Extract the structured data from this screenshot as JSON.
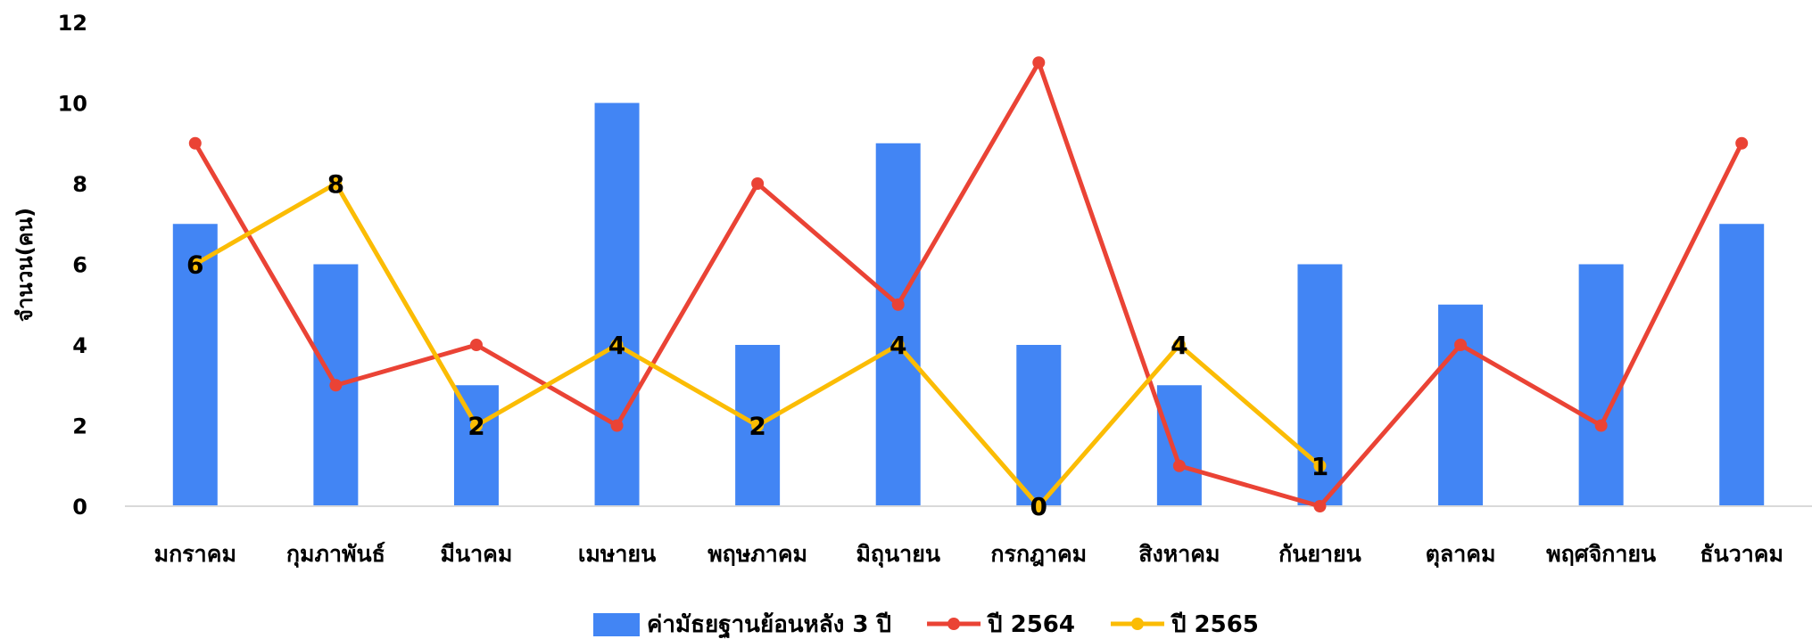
{
  "chart_data": {
    "type": "bar",
    "ylabel": "จำนวน(คน)",
    "ylim": [
      0,
      12
    ],
    "yticks": [
      "0",
      "2",
      "4",
      "6",
      "8",
      "10",
      "12"
    ],
    "grid": false,
    "legend_position": "bottom",
    "categories": [
      "มกราคม",
      "กุมภาพันธ์",
      "มีนาคม",
      "เมษายน",
      "พฤษภาคม",
      "มิถุนายน",
      "กรกฎาคม",
      "สิงหาคม",
      "กันยายน",
      "ตุลาคม",
      "พฤศจิกายน",
      "ธันวาคม"
    ],
    "series": [
      {
        "name": "ค่ามัธยฐานย้อนหลัง 3 ปี",
        "kind": "bar",
        "color": "#4285F4",
        "values": [
          7,
          6,
          3,
          10,
          4,
          9,
          4,
          3,
          6,
          5,
          6,
          7
        ]
      },
      {
        "name": "ปี 2564",
        "kind": "line",
        "color": "#EA4335",
        "values": [
          9,
          3,
          4,
          2,
          8,
          5,
          11,
          1,
          0,
          4,
          2,
          9
        ]
      },
      {
        "name": "ปี 2565",
        "kind": "line",
        "color": "#FBBC04",
        "data_labels": true,
        "values": [
          6,
          8,
          2,
          4,
          2,
          4,
          0,
          4,
          1,
          null,
          null,
          null
        ]
      }
    ]
  }
}
